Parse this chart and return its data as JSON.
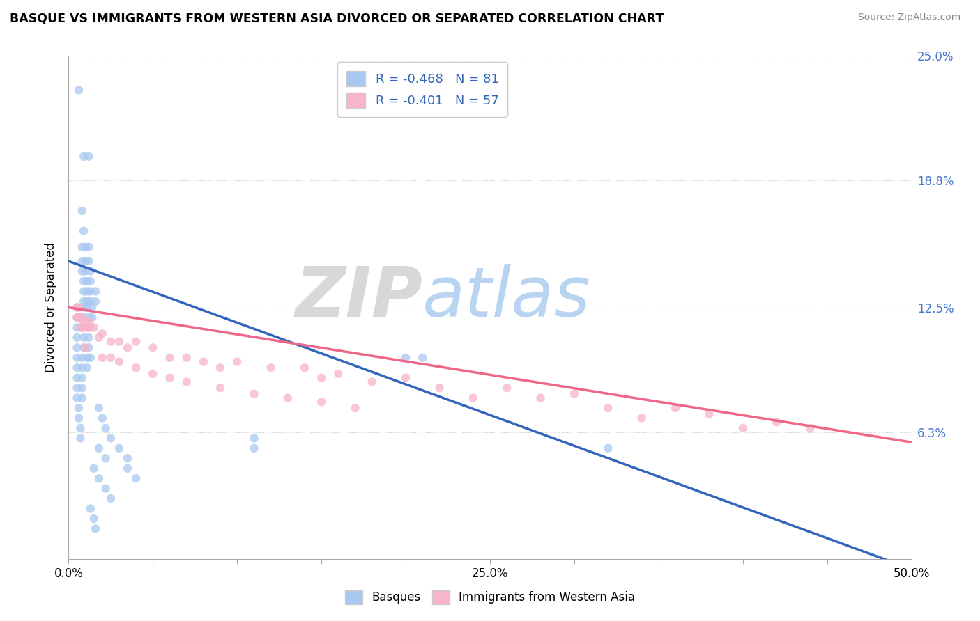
{
  "title": "BASQUE VS IMMIGRANTS FROM WESTERN ASIA DIVORCED OR SEPARATED CORRELATION CHART",
  "source": "Source: ZipAtlas.com",
  "ylabel": "Divorced or Separated",
  "xmin": 0.0,
  "xmax": 0.5,
  "ymin": 0.0,
  "ymax": 0.25,
  "ytick_positions": [
    0.0,
    0.063,
    0.125,
    0.188,
    0.25
  ],
  "ytick_labels_right": [
    "",
    "6.3%",
    "12.5%",
    "18.8%",
    "25.0%"
  ],
  "xtick_positions": [
    0.0,
    0.05,
    0.1,
    0.15,
    0.2,
    0.25,
    0.3,
    0.35,
    0.4,
    0.45,
    0.5
  ],
  "xtick_labels": [
    "0.0%",
    "",
    "",
    "",
    "",
    "25.0%",
    "",
    "",
    "",
    "",
    "50.0%"
  ],
  "series1_color": "#a8c8f0",
  "series2_color": "#f8b4c8",
  "line1_color": "#3366bb",
  "line2_color": "#ee6688",
  "watermark_zip": "ZIP",
  "watermark_atlas": "atlas",
  "line1_x0": 0.0,
  "line1_y0": 0.148,
  "line1_x1": 0.5,
  "line1_y1": -0.005,
  "line2_x0": 0.0,
  "line2_y0": 0.125,
  "line2_x1": 0.5,
  "line2_y1": 0.058,
  "basque_points": [
    [
      0.006,
      0.233
    ],
    [
      0.009,
      0.2
    ],
    [
      0.012,
      0.2
    ],
    [
      0.008,
      0.173
    ],
    [
      0.009,
      0.163
    ],
    [
      0.008,
      0.155
    ],
    [
      0.01,
      0.155
    ],
    [
      0.012,
      0.155
    ],
    [
      0.008,
      0.148
    ],
    [
      0.01,
      0.148
    ],
    [
      0.012,
      0.148
    ],
    [
      0.008,
      0.143
    ],
    [
      0.01,
      0.143
    ],
    [
      0.013,
      0.143
    ],
    [
      0.009,
      0.138
    ],
    [
      0.011,
      0.138
    ],
    [
      0.013,
      0.138
    ],
    [
      0.009,
      0.133
    ],
    [
      0.011,
      0.133
    ],
    [
      0.013,
      0.133
    ],
    [
      0.016,
      0.133
    ],
    [
      0.009,
      0.128
    ],
    [
      0.011,
      0.128
    ],
    [
      0.013,
      0.128
    ],
    [
      0.016,
      0.128
    ],
    [
      0.005,
      0.125
    ],
    [
      0.009,
      0.125
    ],
    [
      0.011,
      0.125
    ],
    [
      0.014,
      0.125
    ],
    [
      0.005,
      0.12
    ],
    [
      0.009,
      0.12
    ],
    [
      0.012,
      0.12
    ],
    [
      0.014,
      0.12
    ],
    [
      0.005,
      0.115
    ],
    [
      0.009,
      0.115
    ],
    [
      0.012,
      0.115
    ],
    [
      0.005,
      0.11
    ],
    [
      0.009,
      0.11
    ],
    [
      0.012,
      0.11
    ],
    [
      0.005,
      0.105
    ],
    [
      0.009,
      0.105
    ],
    [
      0.012,
      0.105
    ],
    [
      0.005,
      0.1
    ],
    [
      0.008,
      0.1
    ],
    [
      0.011,
      0.1
    ],
    [
      0.013,
      0.1
    ],
    [
      0.005,
      0.095
    ],
    [
      0.008,
      0.095
    ],
    [
      0.011,
      0.095
    ],
    [
      0.005,
      0.09
    ],
    [
      0.008,
      0.09
    ],
    [
      0.005,
      0.085
    ],
    [
      0.008,
      0.085
    ],
    [
      0.005,
      0.08
    ],
    [
      0.008,
      0.08
    ],
    [
      0.006,
      0.075
    ],
    [
      0.018,
      0.075
    ],
    [
      0.006,
      0.07
    ],
    [
      0.02,
      0.07
    ],
    [
      0.007,
      0.065
    ],
    [
      0.022,
      0.065
    ],
    [
      0.007,
      0.06
    ],
    [
      0.025,
      0.06
    ],
    [
      0.03,
      0.055
    ],
    [
      0.018,
      0.055
    ],
    [
      0.035,
      0.05
    ],
    [
      0.022,
      0.05
    ],
    [
      0.015,
      0.045
    ],
    [
      0.035,
      0.045
    ],
    [
      0.018,
      0.04
    ],
    [
      0.04,
      0.04
    ],
    [
      0.022,
      0.035
    ],
    [
      0.025,
      0.03
    ],
    [
      0.013,
      0.025
    ],
    [
      0.015,
      0.02
    ],
    [
      0.016,
      0.015
    ],
    [
      0.2,
      0.1
    ],
    [
      0.21,
      0.1
    ],
    [
      0.11,
      0.06
    ],
    [
      0.11,
      0.055
    ],
    [
      0.32,
      0.055
    ]
  ],
  "immigrant_points": [
    [
      0.005,
      0.125
    ],
    [
      0.005,
      0.12
    ],
    [
      0.006,
      0.125
    ],
    [
      0.006,
      0.12
    ],
    [
      0.007,
      0.12
    ],
    [
      0.007,
      0.115
    ],
    [
      0.008,
      0.12
    ],
    [
      0.008,
      0.115
    ],
    [
      0.009,
      0.118
    ],
    [
      0.01,
      0.115
    ],
    [
      0.011,
      0.115
    ],
    [
      0.012,
      0.118
    ],
    [
      0.013,
      0.115
    ],
    [
      0.015,
      0.115
    ],
    [
      0.018,
      0.11
    ],
    [
      0.02,
      0.112
    ],
    [
      0.025,
      0.108
    ],
    [
      0.03,
      0.108
    ],
    [
      0.035,
      0.105
    ],
    [
      0.04,
      0.108
    ],
    [
      0.05,
      0.105
    ],
    [
      0.06,
      0.1
    ],
    [
      0.07,
      0.1
    ],
    [
      0.08,
      0.098
    ],
    [
      0.09,
      0.095
    ],
    [
      0.1,
      0.098
    ],
    [
      0.12,
      0.095
    ],
    [
      0.14,
      0.095
    ],
    [
      0.15,
      0.09
    ],
    [
      0.16,
      0.092
    ],
    [
      0.18,
      0.088
    ],
    [
      0.2,
      0.09
    ],
    [
      0.22,
      0.085
    ],
    [
      0.24,
      0.08
    ],
    [
      0.26,
      0.085
    ],
    [
      0.28,
      0.08
    ],
    [
      0.3,
      0.082
    ],
    [
      0.32,
      0.075
    ],
    [
      0.34,
      0.07
    ],
    [
      0.36,
      0.075
    ],
    [
      0.38,
      0.072
    ],
    [
      0.4,
      0.065
    ],
    [
      0.42,
      0.068
    ],
    [
      0.44,
      0.065
    ],
    [
      0.01,
      0.105
    ],
    [
      0.02,
      0.1
    ],
    [
      0.025,
      0.1
    ],
    [
      0.03,
      0.098
    ],
    [
      0.04,
      0.095
    ],
    [
      0.05,
      0.092
    ],
    [
      0.06,
      0.09
    ],
    [
      0.07,
      0.088
    ],
    [
      0.09,
      0.085
    ],
    [
      0.11,
      0.082
    ],
    [
      0.13,
      0.08
    ],
    [
      0.15,
      0.078
    ],
    [
      0.17,
      0.075
    ]
  ]
}
